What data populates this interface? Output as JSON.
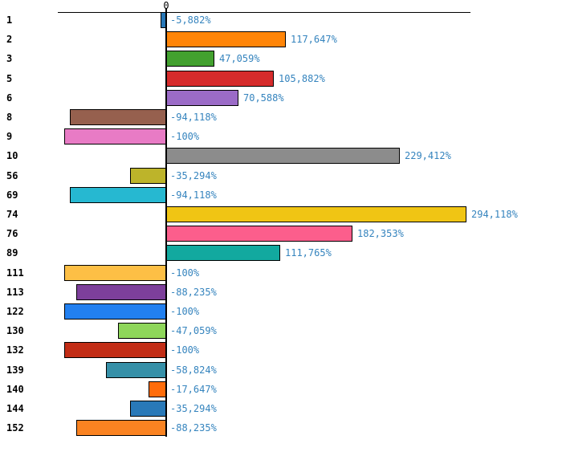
{
  "chart_data": {
    "type": "bar",
    "orientation": "horizontal",
    "title": "",
    "xlabel": "",
    "ylabel": "",
    "zero_tick_label": "0",
    "unit": "%",
    "xlim_percent": [
      -108,
      300
    ],
    "grid": false,
    "legend": "none",
    "categories": [
      "1",
      "2",
      "3",
      "5",
      "6",
      "8",
      "9",
      "10",
      "56",
      "69",
      "74",
      "76",
      "89",
      "111",
      "113",
      "122",
      "130",
      "132",
      "139",
      "140",
      "144",
      "152"
    ],
    "values_percent": [
      -5.882,
      117.647,
      47.059,
      105.882,
      70.588,
      -94.118,
      -100,
      229.412,
      -35.294,
      -94.118,
      294.118,
      182.353,
      111.765,
      -100,
      -88.235,
      -100,
      -47.059,
      -100,
      -58.824,
      -17.647,
      -35.294,
      -88.235
    ],
    "value_labels": [
      "-5,882%",
      "117,647%",
      "47,059%",
      "105,882%",
      "70,588%",
      "-94,118%",
      "-100%",
      "229,412%",
      "-35,294%",
      "-94,118%",
      "294,118%",
      "182,353%",
      "111,765%",
      "-100%",
      "-88,235%",
      "-100%",
      "-47,059%",
      "-100%",
      "-58,824%",
      "-17,647%",
      "-35,294%",
      "-88,235%"
    ],
    "bar_colors": [
      "#2878B8",
      "#FF8508",
      "#43A12F",
      "#D62B2B",
      "#9B6BC7",
      "#96604E",
      "#E87BC5",
      "#8C8C8C",
      "#BDB42A",
      "#26B8D1",
      "#F0C514",
      "#FC5E8C",
      "#12A99F",
      "#FDBF45",
      "#7D3F9B",
      "#2280F0",
      "#8ED65A",
      "#C22D16",
      "#3690A8",
      "#FF6C0A",
      "#2979B8",
      "#FA8321"
    ],
    "bar_border_color": "#000000",
    "value_label_color": "#3584BE",
    "category_label_color": "#000000",
    "axis_color": "#000000",
    "background": "#FFFFFF"
  }
}
